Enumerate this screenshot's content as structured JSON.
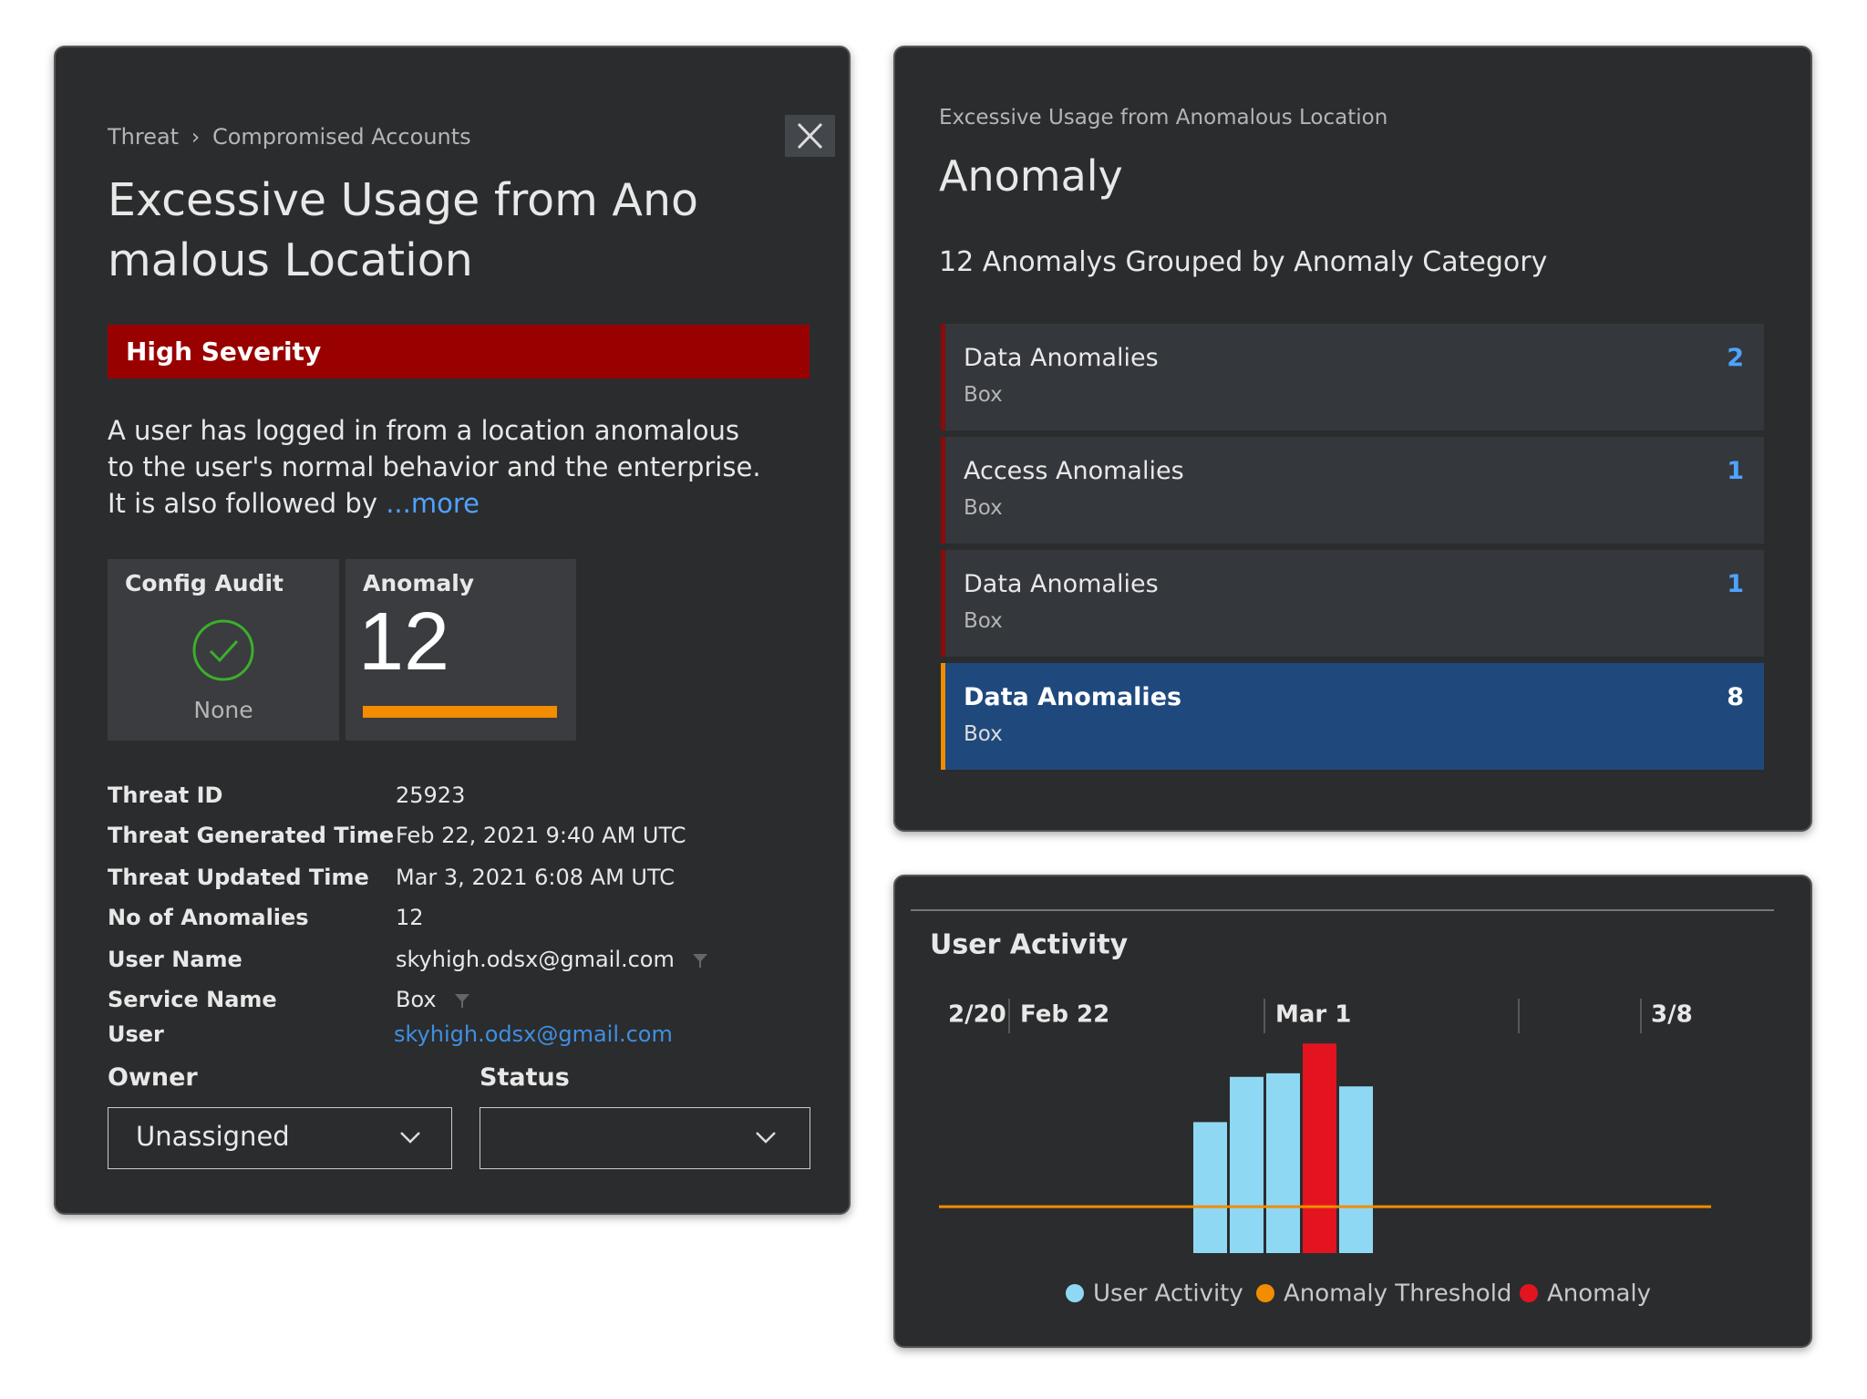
{
  "detail": {
    "breadcrumb": [
      "Threat",
      "Compromised Accounts"
    ],
    "title": "Excessive Usage from Anomalous Location",
    "severity": "High Severity",
    "description": "A user has logged in from a location anomalous to the user's normal behavior and the enterprise. It is also followed by",
    "more": "...more",
    "config_audit": {
      "label": "Config Audit",
      "status": "None"
    },
    "anomaly": {
      "label": "Anomaly",
      "count": 12
    },
    "fields": [
      {
        "label": "Threat ID",
        "value": "25923"
      },
      {
        "label": "Threat Generated Time",
        "value": "Feb 22, 2021 9:40 AM UTC"
      },
      {
        "label": "Threat Updated Time",
        "value": "Mar 3, 2021 6:08 AM UTC"
      },
      {
        "label": "No of Anomalies",
        "value": "12"
      },
      {
        "label": "User Name",
        "value": "skyhigh.odsx@gmail.com"
      },
      {
        "label": "Service Name",
        "value": "Box"
      },
      {
        "label": "User",
        "value": "skyhigh.odsx@gmail.com"
      }
    ],
    "owner_label": "Owner",
    "owner_value": "Unassigned",
    "status_label": "Status"
  },
  "anomaly_panel": {
    "subtitle": "Excessive Usage from Anomalous Location",
    "title": "Anomaly",
    "heading": "12 Anomalys Grouped by Anomaly Category",
    "groups": [
      {
        "name": "Data Anomalies",
        "service": "Box",
        "count": 2
      },
      {
        "name": "Access Anomalies",
        "service": "Box",
        "count": 1
      },
      {
        "name": "Data Anomalies",
        "service": "Box",
        "count": 1
      },
      {
        "name": "Data Anomalies",
        "service": "Box",
        "count": 8
      }
    ]
  },
  "chart_data": {
    "type": "bar",
    "title": "User Activity",
    "x_labels": [
      "2/20",
      "Feb 22",
      "Mar 1",
      "3/8"
    ],
    "categories": [
      null,
      null,
      null,
      null,
      null
    ],
    "series": [
      {
        "name": "User Activity",
        "color": "#8fd8f4",
        "values": [
          110,
          148,
          151,
          null,
          140
        ]
      },
      {
        "name": "Anomaly",
        "color": "#e3141f",
        "values": [
          null,
          null,
          null,
          176,
          null
        ]
      }
    ],
    "threshold": {
      "name": "Anomaly Threshold",
      "color": "#f28c00",
      "value": 39
    },
    "ylim": [
      0,
      180
    ]
  }
}
